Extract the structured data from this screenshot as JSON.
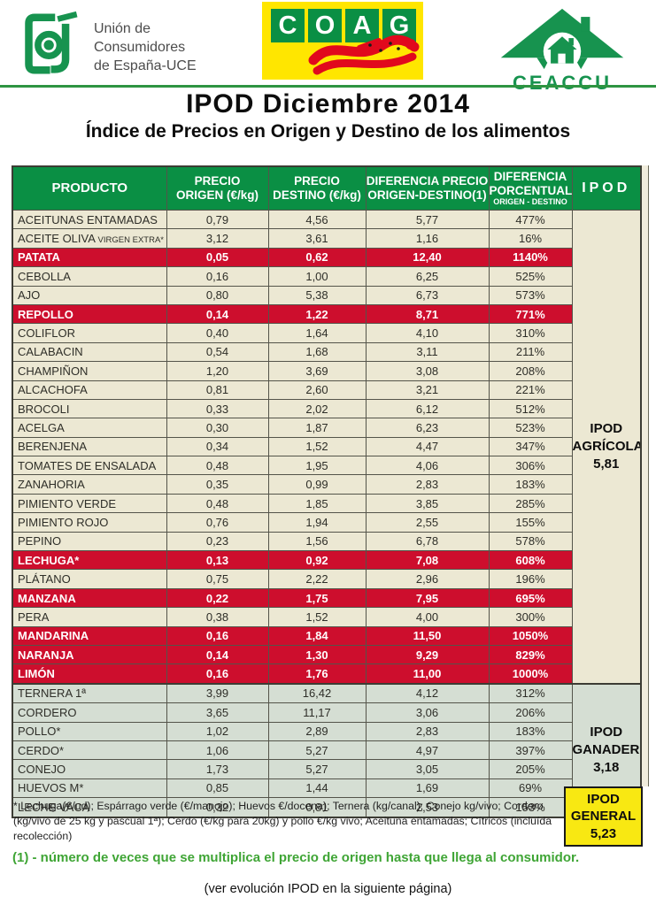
{
  "colors": {
    "green_header": "#0a8f44",
    "red_row": "#cd0e2d",
    "cream": "#ece8d3",
    "sage": "#d5ded3",
    "yellow": "#f8e812",
    "coag_yellow": "#ffe600",
    "logo_green": "#17934f",
    "note_green": "#3fa535",
    "grid": "#54544a"
  },
  "header": {
    "uce": {
      "lines": [
        "Unión de",
        "Consumidores",
        "de España-UCE"
      ]
    },
    "coag": {
      "letters": [
        "C",
        "O",
        "A",
        "G"
      ]
    },
    "ceaccu": {
      "label": "CEACCU"
    },
    "title": "IPOD Diciembre 2014",
    "subtitle": "Índice de Precios en Origen y Destino de los alimentos"
  },
  "table": {
    "header_cells": [
      {
        "l1": "PRODUCTO"
      },
      {
        "l1": "PRECIO",
        "l2": "ORIGEN (€/kg)"
      },
      {
        "l1": "PRECIO",
        "l2": "DESTINO (€/kg)"
      },
      {
        "l1": "DIFERENCIA PRECIO",
        "l2": "ORIGEN-DESTINO(1)"
      },
      {
        "l1": "DIFERENCIA",
        "l2": "PORCENTUAL",
        "l3": "ORIGEN - DESTINO"
      },
      {
        "l1": "IPOD"
      }
    ],
    "rows": [
      {
        "product": "ACEITUNAS ENTAMADAS",
        "origen": "0,79",
        "destino": "4,56",
        "dif": "5,77",
        "pct": "477%",
        "highlight": false,
        "section": "agricola"
      },
      {
        "product": "ACEITE OLIVA",
        "product_small": "VIRGEN EXTRA*",
        "origen": "3,12",
        "destino": "3,61",
        "dif": "1,16",
        "pct": "16%",
        "highlight": false,
        "section": "agricola"
      },
      {
        "product": "PATATA",
        "origen": "0,05",
        "destino": "0,62",
        "dif": "12,40",
        "pct": "1140%",
        "highlight": true,
        "section": "agricola"
      },
      {
        "product": "CEBOLLA",
        "origen": "0,16",
        "destino": "1,00",
        "dif": "6,25",
        "pct": "525%",
        "highlight": false,
        "section": "agricola"
      },
      {
        "product": "AJO",
        "origen": "0,80",
        "destino": "5,38",
        "dif": "6,73",
        "pct": "573%",
        "highlight": false,
        "section": "agricola"
      },
      {
        "product": "REPOLLO",
        "origen": "0,14",
        "destino": "1,22",
        "dif": "8,71",
        "pct": "771%",
        "highlight": true,
        "section": "agricola"
      },
      {
        "product": "COLIFLOR",
        "origen": "0,40",
        "destino": "1,64",
        "dif": "4,10",
        "pct": "310%",
        "highlight": false,
        "section": "agricola"
      },
      {
        "product": "CALABACIN",
        "origen": "0,54",
        "destino": "1,68",
        "dif": "3,11",
        "pct": "211%",
        "highlight": false,
        "section": "agricola"
      },
      {
        "product": "CHAMPIÑON",
        "origen": "1,20",
        "destino": "3,69",
        "dif": "3,08",
        "pct": "208%",
        "highlight": false,
        "section": "agricola"
      },
      {
        "product": "ALCACHOFA",
        "origen": "0,81",
        "destino": "2,60",
        "dif": "3,21",
        "pct": "221%",
        "highlight": false,
        "section": "agricola"
      },
      {
        "product": "BROCOLI",
        "origen": "0,33",
        "destino": "2,02",
        "dif": "6,12",
        "pct": "512%",
        "highlight": false,
        "section": "agricola"
      },
      {
        "product": "ACELGA",
        "origen": "0,30",
        "destino": "1,87",
        "dif": "6,23",
        "pct": "523%",
        "highlight": false,
        "section": "agricola"
      },
      {
        "product": "BERENJENA",
        "origen": "0,34",
        "destino": "1,52",
        "dif": "4,47",
        "pct": "347%",
        "highlight": false,
        "section": "agricola"
      },
      {
        "product": "TOMATES DE ENSALADA",
        "origen": "0,48",
        "destino": "1,95",
        "dif": "4,06",
        "pct": "306%",
        "highlight": false,
        "section": "agricola"
      },
      {
        "product": "ZANAHORIA",
        "origen": "0,35",
        "destino": "0,99",
        "dif": "2,83",
        "pct": "183%",
        "highlight": false,
        "section": "agricola"
      },
      {
        "product": "PIMIENTO VERDE",
        "origen": "0,48",
        "destino": "1,85",
        "dif": "3,85",
        "pct": "285%",
        "highlight": false,
        "section": "agricola"
      },
      {
        "product": "PIMIENTO ROJO",
        "origen": "0,76",
        "destino": "1,94",
        "dif": "2,55",
        "pct": "155%",
        "highlight": false,
        "section": "agricola"
      },
      {
        "product": "PEPINO",
        "origen": "0,23",
        "destino": "1,56",
        "dif": "6,78",
        "pct": "578%",
        "highlight": false,
        "section": "agricola"
      },
      {
        "product": "LECHUGA*",
        "origen": "0,13",
        "destino": "0,92",
        "dif": "7,08",
        "pct": "608%",
        "highlight": true,
        "section": "agricola"
      },
      {
        "product": "PLÁTANO",
        "origen": "0,75",
        "destino": "2,22",
        "dif": "2,96",
        "pct": "196%",
        "highlight": false,
        "section": "agricola"
      },
      {
        "product": "MANZANA",
        "origen": "0,22",
        "destino": "1,75",
        "dif": "7,95",
        "pct": "695%",
        "highlight": true,
        "section": "agricola"
      },
      {
        "product": "PERA",
        "origen": "0,38",
        "destino": "1,52",
        "dif": "4,00",
        "pct": "300%",
        "highlight": false,
        "section": "agricola"
      },
      {
        "product": "MANDARINA",
        "origen": "0,16",
        "destino": "1,84",
        "dif": "11,50",
        "pct": "1050%",
        "highlight": true,
        "section": "agricola"
      },
      {
        "product": "NARANJA",
        "origen": "0,14",
        "destino": "1,30",
        "dif": "9,29",
        "pct": "829%",
        "highlight": true,
        "section": "agricola"
      },
      {
        "product": "LIMÓN",
        "origen": "0,16",
        "destino": "1,76",
        "dif": "11,00",
        "pct": "1000%",
        "highlight": true,
        "section": "agricola"
      },
      {
        "product": "TERNERA 1ª",
        "origen": "3,99",
        "destino": "16,42",
        "dif": "4,12",
        "pct": "312%",
        "highlight": false,
        "section": "ganadero"
      },
      {
        "product": "CORDERO",
        "origen": "3,65",
        "destino": "11,17",
        "dif": "3,06",
        "pct": "206%",
        "highlight": false,
        "section": "ganadero"
      },
      {
        "product": "POLLO*",
        "origen": "1,02",
        "destino": "2,89",
        "dif": "2,83",
        "pct": "183%",
        "highlight": false,
        "section": "ganadero"
      },
      {
        "product": "CERDO*",
        "origen": "1,06",
        "destino": "5,27",
        "dif": "4,97",
        "pct": "397%",
        "highlight": false,
        "section": "ganadero"
      },
      {
        "product": "CONEJO",
        "origen": "1,73",
        "destino": "5,27",
        "dif": "3,05",
        "pct": "205%",
        "highlight": false,
        "section": "ganadero"
      },
      {
        "product": "HUEVOS M*",
        "origen": "0,85",
        "destino": "1,44",
        "dif": "1,69",
        "pct": "69%",
        "highlight": false,
        "section": "ganadero"
      },
      {
        "product": "LECHE VACA",
        "origen": "0,32",
        "destino": "0,81",
        "dif": "2,53",
        "pct": "153%",
        "highlight": false,
        "section": "ganadero"
      }
    ],
    "ipod_agricola": {
      "lines": [
        "IPOD",
        "AGRÍCOLA",
        "5,81"
      ]
    },
    "ipod_ganadero": {
      "lines": [
        "IPOD",
        "GANADERO",
        "3,18"
      ]
    },
    "ipod_general": {
      "lines": [
        "IPOD",
        "GENERAL",
        "5,23"
      ]
    }
  },
  "footnotes": {
    "asterisk": "* Lechuga(€/ud); Espárrago verde (€/manojo); Huevos €/docena); Ternera (kg/canal); Conejo kg/vivo; Cordero (kg/vivo de 25 kg y pascual 1ª); Cerdo (€/kg para 20kg) y pollo €/kg vivo; Aceituna entamadas; Cítricos (incluída recolección)",
    "note1": "(1) - número de veces que se multiplica el precio de origen hasta que llega al consumidor.",
    "bottom": "(ver evolución IPOD en la siguiente página)"
  }
}
